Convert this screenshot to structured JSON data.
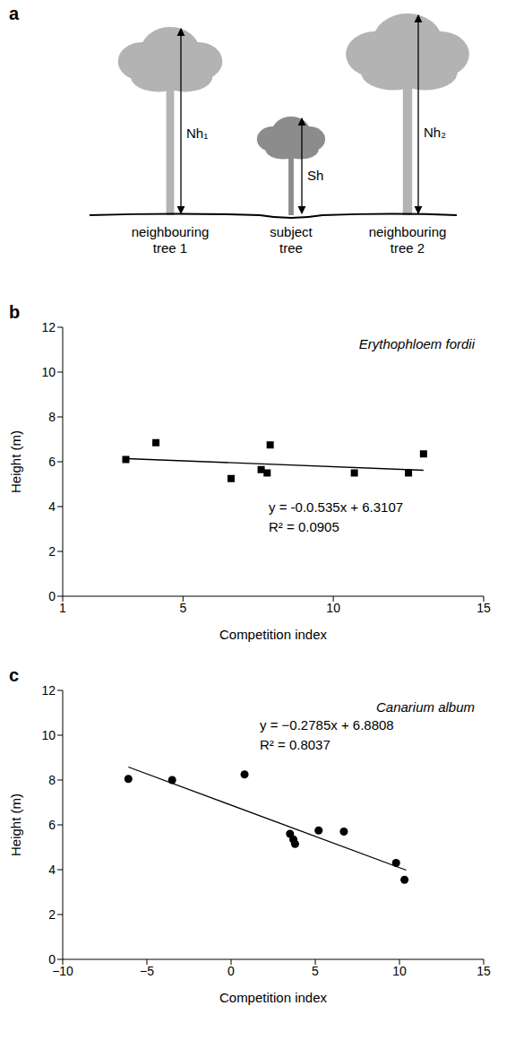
{
  "diagram": {
    "panel": "a",
    "trees": [
      {
        "label": "neighbouring tree 1",
        "height_label": "Nh₁"
      },
      {
        "label": "subject tree",
        "height_label": "Sh"
      },
      {
        "label": "neighbouring tree 2",
        "height_label": "Nh₂"
      }
    ]
  },
  "chart_data": [
    {
      "panel": "b",
      "type": "scatter",
      "title": "Erythophloem fordii",
      "x_label": "Competition index",
      "y_label": "Height (m)",
      "x": [
        3.1,
        4.1,
        6.6,
        7.6,
        7.8,
        7.9,
        10.7,
        12.5,
        13.0
      ],
      "values": [
        6.1,
        6.85,
        5.25,
        5.65,
        5.5,
        6.75,
        5.5,
        5.5,
        6.35
      ],
      "color": "#000000",
      "marker": "square",
      "grid": false,
      "xlim": [
        1,
        15
      ],
      "xticks": [
        1,
        5,
        10,
        15
      ],
      "ylim": [
        0,
        12
      ],
      "yticks": [
        0,
        2,
        4,
        6,
        8,
        10,
        12
      ],
      "fit_line": {
        "x": [
          3.1,
          13.0
        ],
        "y": [
          6.14,
          5.62
        ]
      },
      "annotations": [
        "y = -0.0.535x + 6.3107",
        "R² = 0.0905"
      ]
    },
    {
      "panel": "c",
      "type": "scatter",
      "title": "Canarium album",
      "x_label": "Competition index",
      "y_label": "Height (m)",
      "x": [
        -6.1,
        -3.5,
        0.8,
        3.5,
        3.7,
        3.8,
        5.2,
        6.7,
        9.8,
        10.3
      ],
      "values": [
        8.05,
        8.0,
        8.25,
        5.6,
        5.35,
        5.15,
        5.75,
        5.7,
        4.3,
        3.55
      ],
      "color": "#000000",
      "marker": "circle",
      "grid": false,
      "xlim": [
        -10,
        15
      ],
      "xticks": [
        {
          "value": -10,
          "label": "−10"
        },
        {
          "value": -5,
          "label": "−5"
        },
        0,
        5,
        10,
        15
      ],
      "ylim": [
        0,
        12
      ],
      "yticks": [
        0,
        2,
        4,
        6,
        8,
        10,
        12
      ],
      "fit_line": {
        "x": [
          -6.1,
          10.4
        ],
        "y": [
          8.58,
          3.98
        ]
      },
      "annotations": [
        "y = −0.2785x + 6.8808",
        "R² = 0.8037"
      ]
    }
  ]
}
